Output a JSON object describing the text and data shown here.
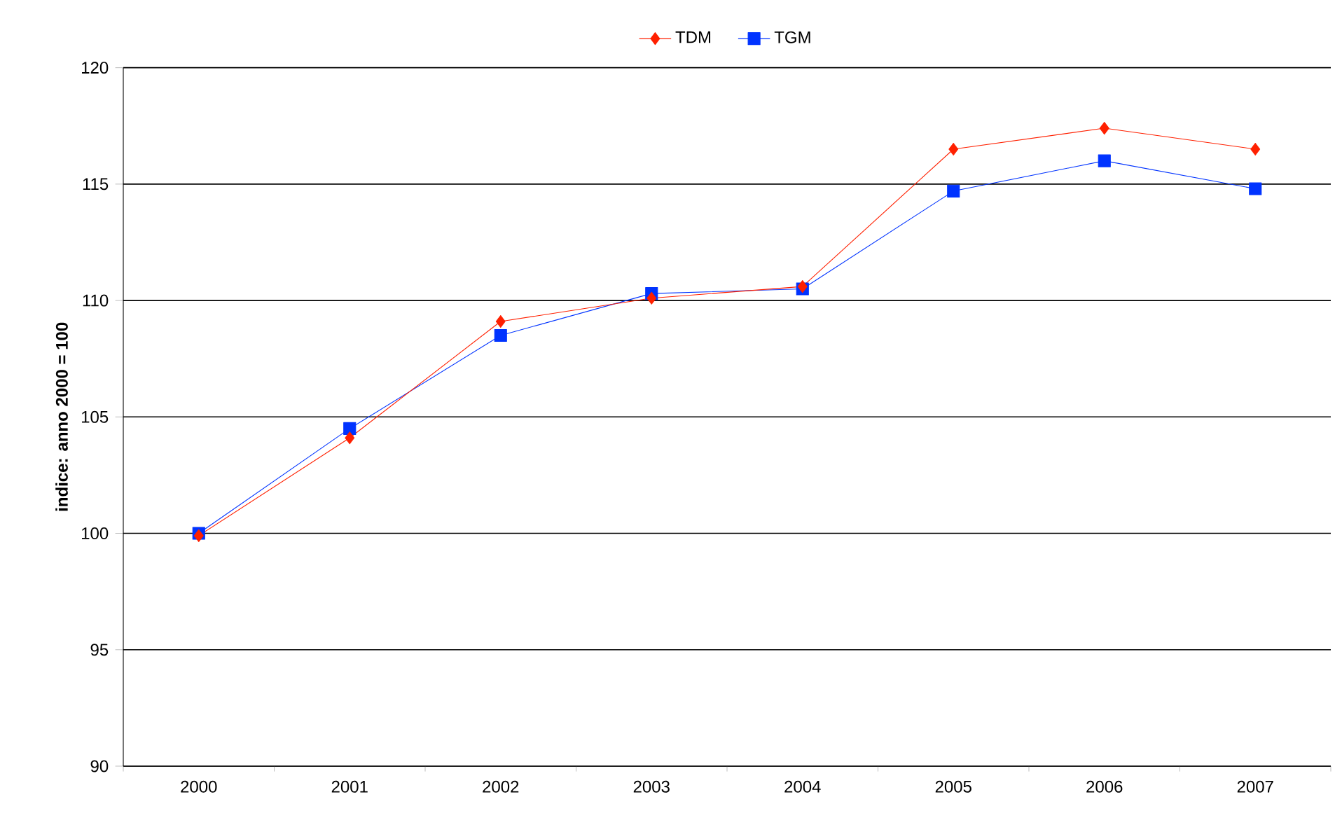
{
  "chart_data": {
    "type": "line",
    "ylabel": "indice: anno 2000 = 100",
    "categories": [
      "2000",
      "2001",
      "2002",
      "2003",
      "2004",
      "2005",
      "2006",
      "2007"
    ],
    "series": [
      {
        "name": "TDM",
        "color": "#ff2000",
        "marker": "diamond",
        "values": [
          99.9,
          104.1,
          109.1,
          110.1,
          110.6,
          116.5,
          117.4,
          116.5
        ]
      },
      {
        "name": "TGM",
        "color": "#0033ff",
        "marker": "square",
        "values": [
          100.0,
          104.5,
          108.5,
          110.3,
          110.5,
          114.7,
          116.0,
          114.8
        ]
      }
    ],
    "ylim": [
      90,
      120
    ],
    "yticks": [
      90,
      95,
      100,
      105,
      110,
      115,
      120
    ],
    "grid": "y",
    "legend": "top",
    "line_style": "solid"
  }
}
